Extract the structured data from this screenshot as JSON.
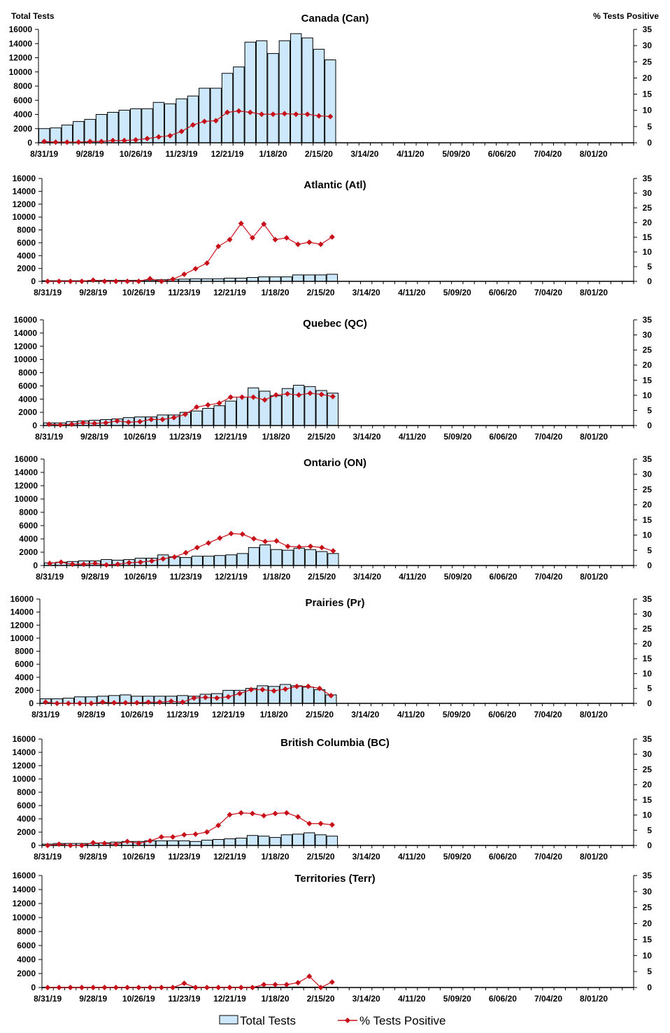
{
  "legend": {
    "bars_label": "Total Tests",
    "line_label": "% Tests Positive"
  },
  "colors": {
    "bar_fill": "#cce8fa",
    "bar_stroke": "#000000",
    "line": "#c8101a"
  },
  "chart_data": [
    {
      "type": "bar+line",
      "title": "Canada (Can)",
      "ylabel_left": "Total Tests",
      "ylabel_right": "% Tests Positive",
      "x_tick_labels": [
        "8/31/19",
        "9/28/19",
        "10/26/19",
        "11/23/19",
        "12/21/19",
        "1/18/20",
        "2/15/20",
        "3/14/20",
        "4/11/20",
        "5/09/20",
        "6/06/20",
        "7/04/20",
        "8/01/20"
      ],
      "ylim_left": [
        0,
        16000
      ],
      "ylim_right": [
        0,
        35
      ],
      "series": [
        {
          "name": "Total Tests",
          "axis": "left",
          "values": [
            2000,
            2100,
            2500,
            3000,
            3300,
            4000,
            4300,
            4600,
            4800,
            4800,
            5700,
            5500,
            6200,
            6600,
            7700,
            7700,
            9800,
            10700,
            14200,
            14400,
            12600,
            14400,
            15400,
            14800,
            13200,
            11700
          ]
        },
        {
          "name": "% Tests Positive",
          "axis": "right",
          "values": [
            0.4,
            0.2,
            0.2,
            0.2,
            0.4,
            0.4,
            0.7,
            0.7,
            0.9,
            1.3,
            1.8,
            2.2,
            3.5,
            5.5,
            6.6,
            6.8,
            9.4,
            9.8,
            9.4,
            8.8,
            8.8,
            9.0,
            8.8,
            8.8,
            8.3,
            8.1
          ]
        }
      ]
    },
    {
      "type": "bar+line",
      "title": "Atlantic (Atl)",
      "x_tick_labels": [
        "8/31/19",
        "9/28/19",
        "10/26/19",
        "11/23/19",
        "12/21/19",
        "1/18/20",
        "2/15/20",
        "3/14/20",
        "4/11/20",
        "5/09/20",
        "6/06/20",
        "7/04/20",
        "8/01/20"
      ],
      "ylim_left": [
        0,
        16000
      ],
      "ylim_right": [
        0,
        35
      ],
      "series": [
        {
          "name": "Total Tests",
          "axis": "left",
          "values": [
            100,
            100,
            100,
            100,
            150,
            150,
            150,
            150,
            150,
            200,
            250,
            300,
            350,
            400,
            400,
            400,
            500,
            500,
            600,
            700,
            700,
            700,
            1000,
            1000,
            1000,
            1100
          ]
        },
        {
          "name": "% Tests Positive",
          "axis": "right",
          "values": [
            0,
            0,
            0,
            0,
            0.4,
            0,
            0,
            0,
            0,
            0.9,
            0,
            0.7,
            2.4,
            4.3,
            6.2,
            11.9,
            14.2,
            19.7,
            14.8,
            19.5,
            14.2,
            14.8,
            12.6,
            13.3,
            12.6,
            15.1
          ]
        }
      ]
    },
    {
      "type": "bar+line",
      "title": "Quebec (QC)",
      "x_tick_labels": [
        "8/31/19",
        "9/28/19",
        "10/26/19",
        "11/23/19",
        "12/21/19",
        "1/18/20",
        "2/15/20",
        "3/14/20",
        "4/11/20",
        "5/09/20",
        "6/06/20",
        "7/04/20",
        "8/01/20"
      ],
      "ylim_left": [
        0,
        16000
      ],
      "ylim_right": [
        0,
        35
      ],
      "series": [
        {
          "name": "Total Tests",
          "axis": "left",
          "values": [
            400,
            400,
            600,
            700,
            800,
            900,
            1000,
            1200,
            1300,
            1300,
            1600,
            1600,
            2000,
            2200,
            2600,
            3000,
            3700,
            4300,
            5700,
            5200,
            4500,
            5600,
            6100,
            5900,
            5300,
            4900
          ]
        },
        {
          "name": "% Tests Positive",
          "axis": "right",
          "values": [
            0.4,
            0.2,
            0.4,
            0.9,
            0.7,
            0.9,
            1.5,
            1.1,
            1.3,
            2.0,
            2.0,
            2.6,
            3.7,
            6.1,
            6.8,
            7.4,
            9.4,
            9.4,
            9.4,
            8.5,
            10.1,
            10.5,
            10.1,
            10.7,
            10.3,
            9.6
          ]
        }
      ]
    },
    {
      "type": "bar+line",
      "title": "Ontario (ON)",
      "x_tick_labels": [
        "8/31/19",
        "9/28/19",
        "10/26/19",
        "11/23/19",
        "12/21/19",
        "1/18/20",
        "2/15/20",
        "3/14/20",
        "4/11/20",
        "5/09/20",
        "6/06/20",
        "7/04/20",
        "8/01/20"
      ],
      "ylim_left": [
        0,
        16000
      ],
      "ylim_right": [
        0,
        35
      ],
      "series": [
        {
          "name": "Total Tests",
          "axis": "left",
          "values": [
            400,
            500,
            600,
            700,
            700,
            900,
            800,
            900,
            1100,
            1100,
            1600,
            1300,
            1200,
            1400,
            1400,
            1500,
            1600,
            1800,
            2700,
            3100,
            2400,
            2300,
            2600,
            2400,
            2100,
            1800
          ]
        },
        {
          "name": "% Tests Positive",
          "axis": "right",
          "values": [
            0.7,
            1.1,
            0.4,
            0.4,
            0.7,
            0.2,
            0.4,
            0.9,
            1.1,
            1.5,
            2.2,
            2.8,
            4.2,
            5.9,
            7.4,
            9.0,
            10.5,
            10.3,
            8.8,
            7.9,
            8.1,
            6.3,
            6.1,
            6.3,
            5.9,
            4.8
          ]
        }
      ]
    },
    {
      "type": "bar+line",
      "title": "Prairies (Pr)",
      "x_tick_labels": [
        "8/31/19",
        "9/28/19",
        "10/26/19",
        "11/23/19",
        "12/21/19",
        "1/18/20",
        "2/15/20",
        "3/14/20",
        "4/11/20",
        "5/09/20",
        "6/06/20",
        "7/04/20",
        "8/01/20"
      ],
      "ylim_left": [
        0,
        16000
      ],
      "ylim_right": [
        0,
        35
      ],
      "series": [
        {
          "name": "Total Tests",
          "axis": "left",
          "values": [
            700,
            700,
            800,
            1000,
            1000,
            1100,
            1200,
            1300,
            1100,
            1100,
            1100,
            1100,
            1200,
            1100,
            1400,
            1500,
            2000,
            2000,
            2300,
            2700,
            2600,
            2900,
            2700,
            2500,
            2100,
            1300
          ]
        },
        {
          "name": "% Tests Positive",
          "axis": "right",
          "values": [
            0.4,
            0,
            0,
            0,
            0,
            0.4,
            0.2,
            0.2,
            0.2,
            0.4,
            0.4,
            0.7,
            0.4,
            1.8,
            2.0,
            1.8,
            2.2,
            3.3,
            4.6,
            4.6,
            4.2,
            4.8,
            5.7,
            5.7,
            5.0,
            2.6
          ]
        }
      ]
    },
    {
      "type": "bar+line",
      "title": "British Columbia (BC)",
      "x_tick_labels": [
        "8/31/19",
        "9/28/19",
        "10/26/19",
        "11/23/19",
        "12/21/19",
        "1/18/20",
        "2/15/20",
        "3/14/20",
        "4/11/20",
        "5/09/20",
        "6/06/20",
        "7/04/20",
        "8/01/20"
      ],
      "ylim_left": [
        0,
        16000
      ],
      "ylim_right": [
        0,
        35
      ],
      "series": [
        {
          "name": "Total Tests",
          "axis": "left",
          "values": [
            200,
            300,
            300,
            300,
            300,
            400,
            500,
            600,
            600,
            700,
            700,
            700,
            700,
            600,
            800,
            900,
            1000,
            1100,
            1500,
            1400,
            1200,
            1600,
            1700,
            1900,
            1600,
            1400
          ]
        },
        {
          "name": "% Tests Positive",
          "axis": "right",
          "values": [
            0,
            0.4,
            0,
            0,
            0.9,
            0.7,
            0.4,
            1.3,
            0.7,
            1.5,
            2.8,
            2.8,
            3.5,
            3.7,
            4.4,
            6.6,
            10.1,
            10.7,
            10.5,
            9.8,
            10.5,
            10.7,
            9.4,
            7.2,
            7.2,
            6.8
          ]
        }
      ]
    },
    {
      "type": "bar+line",
      "title": "Territories (Terr)",
      "x_tick_labels": [
        "8/31/19",
        "9/28/19",
        "10/26/19",
        "11/23/19",
        "12/21/19",
        "1/18/20",
        "2/15/20",
        "3/14/20",
        "4/11/20",
        "5/09/20",
        "6/06/20",
        "7/04/20",
        "8/01/20"
      ],
      "ylim_left": [
        0,
        16000
      ],
      "ylim_right": [
        0,
        35
      ],
      "series": [
        {
          "name": "Total Tests",
          "axis": "left",
          "values": [
            20,
            20,
            20,
            30,
            30,
            30,
            30,
            30,
            30,
            30,
            30,
            40,
            40,
            40,
            40,
            40,
            40,
            50,
            50,
            60,
            60,
            60,
            70,
            60,
            60,
            50
          ]
        },
        {
          "name": "% Tests Positive",
          "axis": "right",
          "values": [
            0,
            0,
            0,
            0,
            0,
            0,
            0,
            0,
            0,
            0,
            0,
            0,
            1.3,
            0,
            0,
            0,
            0,
            0,
            0,
            0.9,
            0.9,
            0.9,
            1.5,
            3.5,
            0,
            1.7
          ]
        }
      ]
    }
  ]
}
